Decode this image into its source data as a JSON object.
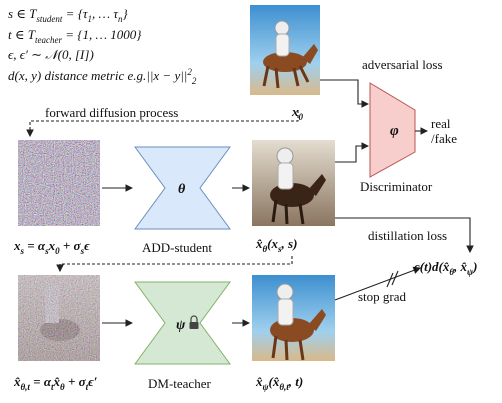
{
  "definitions": [
    [
      "s ∈ T",
      {
        "sub": "student"
      },
      " = {τ",
      {
        "sub": "1"
      },
      ", … τ",
      {
        "sub": "n"
      },
      "}"
    ],
    [
      "t ∈ T",
      {
        "sub": "teacher"
      },
      " = {1, … 1000}"
    ],
    [
      "ϵ, ϵ′ ∼ 𝒩(0, [I])"
    ],
    [
      "d(x, y) distance metric e.g.||x − y||",
      {
        "sup": "2"
      },
      {
        "sub": "2"
      }
    ]
  ],
  "x0_label": [
    "x",
    {
      "sub": "0"
    }
  ],
  "adversarial_loss": "adversarial loss",
  "forward_diffusion": "forward diffusion process",
  "discriminator": {
    "symbol": "φ",
    "name": "Discriminator",
    "output": [
      "real",
      "/fake"
    ]
  },
  "student": {
    "symbol": "θ",
    "name": "ADD-student"
  },
  "teacher": {
    "symbol": "ψ",
    "name": "DM-teacher"
  },
  "xs_label": [
    "x",
    {
      "sub": "s"
    },
    " = α",
    {
      "sub": "s"
    },
    "x",
    {
      "sub": "0"
    },
    " + σ",
    {
      "sub": "s"
    },
    "ϵ"
  ],
  "xhat_theta_label": [
    "x̂",
    {
      "sub": "θ"
    },
    "(x",
    {
      "sub": "s"
    },
    ", s)"
  ],
  "xhat_theta_t_label": [
    "x̂",
    {
      "sub": "θ,t"
    },
    " = α",
    {
      "sub": "t"
    },
    "x̂",
    {
      "sub": "θ"
    },
    " + σ",
    {
      "sub": "t"
    },
    "ϵ′"
  ],
  "xhat_psi_label": [
    "x̂",
    {
      "sub": "ψ"
    },
    "(x̂",
    {
      "sub": "θ,t"
    },
    ", t)"
  ],
  "distillation_loss": "distillation loss",
  "loss_expr": [
    "c(t)d(x̂",
    {
      "sub": "θ"
    },
    ", x̂",
    {
      "sub": "ψ"
    },
    ")"
  ],
  "stop_grad": "stop grad"
}
